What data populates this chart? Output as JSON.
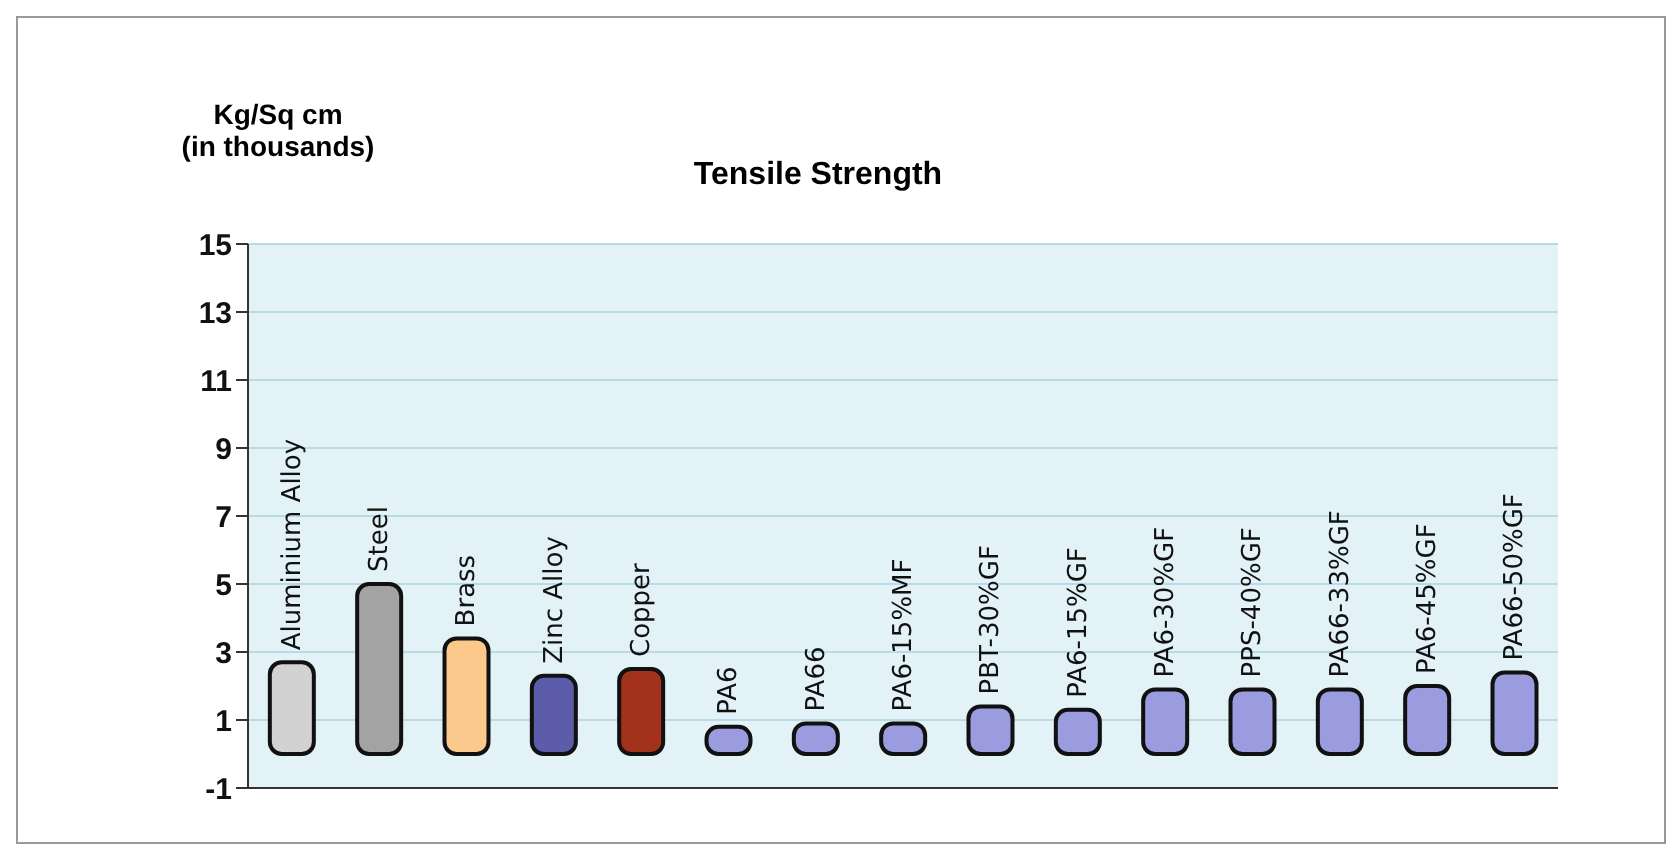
{
  "chart_data": {
    "type": "bar",
    "title": "Tensile Strength",
    "ylabel": "Kg/Sq cm\n(in thousands)",
    "categories": [
      "Aluminium Alloy",
      "Steel",
      "Brass",
      "Zinc Alloy",
      "Copper",
      "PA6",
      "PA66",
      "PA6-15%MF",
      "PBT-30%GF",
      "PA6-15%GF",
      "PA6-30%GF",
      "PPS-40%GF",
      "PA66-33%GF",
      "PA6-45%GF",
      "PA66-50%GF"
    ],
    "values": [
      2.7,
      5.0,
      3.4,
      2.3,
      2.5,
      0.8,
      0.9,
      0.9,
      1.4,
      1.3,
      1.9,
      1.9,
      1.9,
      2.0,
      2.4
    ],
    "colors": [
      "#d2d2d2",
      "#a3a3a3",
      "#fbc98c",
      "#5c5cab",
      "#a3321c",
      "#9b9be0",
      "#9b9be0",
      "#9b9be0",
      "#9b9be0",
      "#9b9be0",
      "#9b9be0",
      "#9b9be0",
      "#9b9be0",
      "#9b9be0",
      "#9b9be0"
    ],
    "ylim": [
      -1,
      15
    ],
    "yticks": [
      -1,
      1,
      3,
      5,
      7,
      9,
      11,
      13,
      15
    ],
    "grid": "y",
    "tick_labels": "y"
  }
}
